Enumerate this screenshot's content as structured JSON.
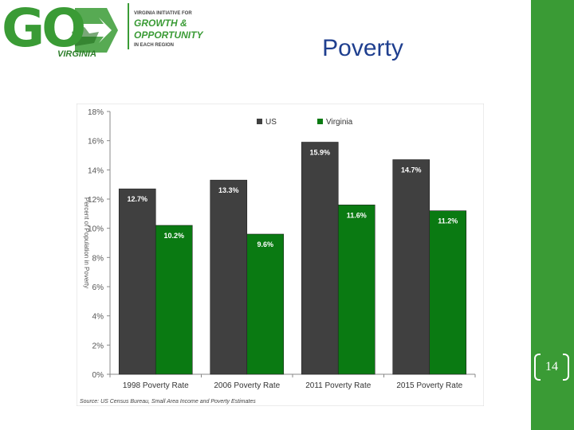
{
  "logo": {
    "go_text": "GO",
    "virginia_text": "VIRGINIA",
    "tagline_top": "VIRGINIA INITIATIVE FOR",
    "tagline_growth": "GROWTH &",
    "tagline_opportunity": "OPPORTUNITY",
    "tagline_bottom": "IN EACH REGION",
    "brand_color": "#3a9b35"
  },
  "slide": {
    "title": "Poverty",
    "page_number": "14",
    "title_color": "#1f3f8f"
  },
  "chart_data": {
    "type": "bar",
    "title": "",
    "xlabel": "",
    "ylabel": "Percent of Population in Poverty",
    "categories": [
      "1998 Poverty Rate",
      "2006 Poverty Rate",
      "2011 Poverty Rate",
      "2015 Poverty Rate"
    ],
    "series": [
      {
        "name": "US",
        "color": "#404040",
        "values": [
          12.7,
          13.3,
          15.9,
          14.7
        ],
        "labels": [
          "12.7%",
          "13.3%",
          "15.9%",
          "14.7%"
        ]
      },
      {
        "name": "Virginia",
        "color": "#0a7a12",
        "values": [
          10.2,
          9.6,
          11.6,
          11.2
        ],
        "labels": [
          "10.2%",
          "9.6%",
          "11.6%",
          "11.2%"
        ]
      }
    ],
    "ylim": [
      0,
      18
    ],
    "yticks": [
      0,
      2,
      4,
      6,
      8,
      10,
      12,
      14,
      16,
      18
    ],
    "ytick_labels": [
      "0%",
      "2%",
      "4%",
      "6%",
      "8%",
      "10%",
      "12%",
      "14%",
      "16%",
      "18%"
    ],
    "grid": false,
    "legend": "top-center",
    "source": "Source: US Census Bureau, Small Area Income and Poverty Estimates"
  }
}
